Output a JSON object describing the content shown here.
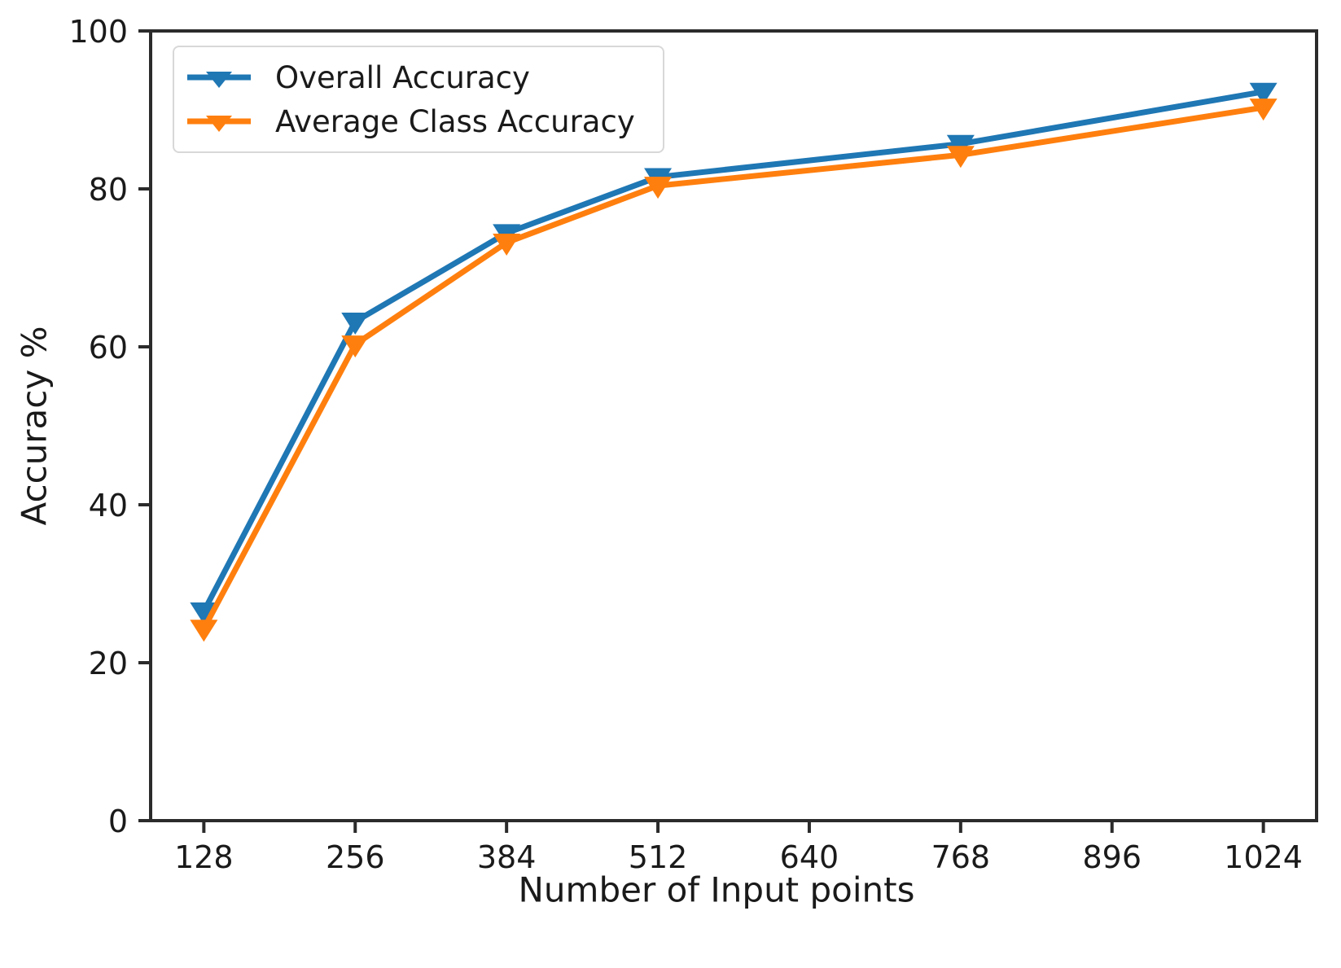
{
  "chart_data": {
    "type": "line",
    "x": [
      128,
      256,
      384,
      512,
      768,
      1024
    ],
    "series": [
      {
        "name": "Overall Accuracy",
        "color": "#1f77b4",
        "marker": "triangle-down",
        "values": [
          26.5,
          63.2,
          74.4,
          81.5,
          85.7,
          92.3
        ]
      },
      {
        "name": "Average Class Accuracy",
        "color": "#ff7f0e",
        "marker": "triangle-down",
        "values": [
          24.3,
          60.3,
          73.2,
          80.4,
          84.3,
          90.3
        ]
      }
    ],
    "title": "",
    "xlabel": "Number of Input points",
    "ylabel": "Accuracy %",
    "xticks": [
      128,
      256,
      384,
      512,
      640,
      768,
      896,
      1024
    ],
    "yticks": [
      0,
      20,
      40,
      60,
      80,
      100
    ],
    "xlim": [
      83,
      1069
    ],
    "ylim": [
      0,
      100
    ],
    "grid": false,
    "legend_position": "upper-left"
  },
  "colors": {
    "text": "#1a1a1a",
    "spine": "#2b2b2b",
    "background": "#ffffff"
  }
}
